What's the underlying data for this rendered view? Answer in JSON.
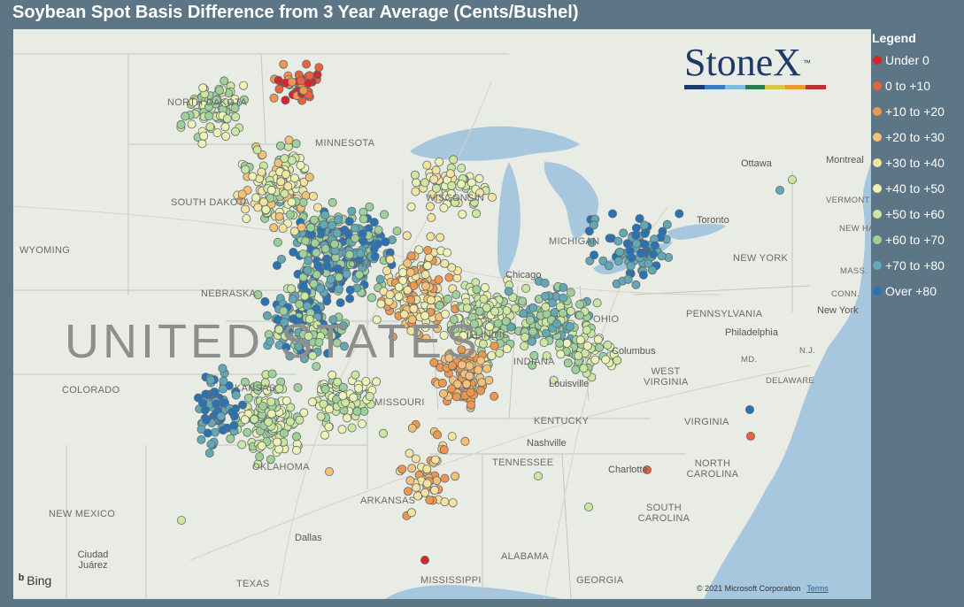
{
  "title": "Soybean Spot Basis Difference from 3 Year Average (Cents/Bushel)",
  "legend": {
    "title": "Legend",
    "items": [
      {
        "label": "Under 0",
        "color": "#d6262b"
      },
      {
        "label": "0 to +10",
        "color": "#e8623a"
      },
      {
        "label": "+10 to +20",
        "color": "#f0974f"
      },
      {
        "label": "+20 to +30",
        "color": "#f6c177"
      },
      {
        "label": "+30 to +40",
        "color": "#f7e3a0"
      },
      {
        "label": "+40 to +50",
        "color": "#eef4b6"
      },
      {
        "label": "+50 to +60",
        "color": "#cde6a0"
      },
      {
        "label": "+60 to +70",
        "color": "#9fd09a"
      },
      {
        "label": "+70 to +80",
        "color": "#63a9b5"
      },
      {
        "label": "Over +80",
        "color": "#2b72b4"
      }
    ]
  },
  "map": {
    "country_label": "UNITED STATES",
    "states": [
      "NORTH DAKOTA",
      "SOUTH DAKOTA",
      "MINNESOTA",
      "WISCONSIN",
      "WYOMING",
      "NEBRASKA",
      "COLORADO",
      "KANSAS",
      "MISSOURI",
      "IOWA",
      "ILLINOIS",
      "INDIANA",
      "OHIO",
      "MICHIGAN",
      "KENTUCKY",
      "TENNESSEE",
      "OKLAHOMA",
      "ARKANSAS",
      "NEW MEXICO",
      "TEXAS",
      "MISSISSIPPI",
      "ALABAMA",
      "GEORGIA",
      "SOUTH CAROLINA",
      "NORTH CAROLINA",
      "VIRGINIA",
      "WEST VIRGINIA",
      "PENNSYLVANIA",
      "NEW YORK",
      "MD.",
      "DELAWARE",
      "N.J.",
      "CONN.",
      "MASS.",
      "NEW HAMPS.",
      "VERMONT"
    ],
    "cities": [
      "Chicago",
      "Columbus",
      "Louisville",
      "Nashville",
      "Charlotte",
      "Philadelphia",
      "New York",
      "Montreal",
      "Ottawa",
      "Toronto",
      "Dallas",
      "Ciudad Juárez"
    ],
    "attribution": "Bing",
    "copyright": "© 2021 Microsoft Corporation",
    "terms": "Terms"
  },
  "logo": {
    "text": "StoneX",
    "tm": "™",
    "bar_colors": [
      "#1d3a6b",
      "#3b7fc0",
      "#86b7dd",
      "#2e7d4f",
      "#d9c54b",
      "#e59b2f",
      "#b8322e"
    ]
  }
}
